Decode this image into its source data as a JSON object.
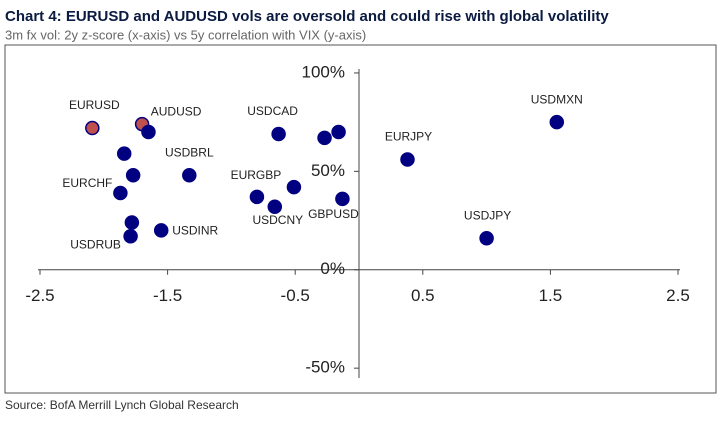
{
  "chart_data": {
    "type": "scatter",
    "title": "Chart 4: EURUSD and AUDUSD vols are oversold and could rise with global volatility",
    "subtitle": "3m fx vol: 2y z-score (x-axis) vs 5y correlation with VIX (y-axis)",
    "source": "Source: BofA Merrill Lynch Global Research",
    "labels": [
      "EURUSD",
      "AUDUSD",
      null,
      null,
      "USDBRL",
      null,
      "EURCHF",
      null,
      "USDRUB",
      "USDINR",
      "USDCAD",
      null,
      null,
      "EURGBP",
      null,
      "USDCNY",
      "GBPUSD",
      "EURJPY",
      "USDJPY",
      "USDMXN"
    ],
    "x": [
      -2.09,
      -1.7,
      -1.65,
      -1.84,
      -1.33,
      -1.77,
      -1.87,
      -1.78,
      -1.79,
      -1.55,
      -0.63,
      -0.27,
      -0.16,
      -0.8,
      -0.51,
      -0.66,
      -0.13,
      0.38,
      1.0,
      1.55
    ],
    "values": [
      72,
      74,
      70,
      59,
      48,
      48,
      39,
      24,
      17,
      20,
      69,
      67,
      70,
      37,
      42,
      32,
      36,
      56,
      16,
      75
    ],
    "point_colors": [
      "#c0504d",
      "#c0504d",
      "#000080",
      "#000080",
      "#000080",
      "#000080",
      "#000080",
      "#000080",
      "#000080",
      "#000080",
      "#000080",
      "#000080",
      "#000080",
      "#000080",
      "#000080",
      "#000080",
      "#000080",
      "#000080",
      "#000080",
      "#000080"
    ],
    "edge_color": "#000080",
    "xlim": [
      -2.5,
      2.5
    ],
    "xticks": [
      -2.5,
      -1.5,
      -0.5,
      0.5,
      1.5,
      2.5
    ],
    "ylim": [
      -55,
      102
    ],
    "yticks": [
      {
        "value": -50,
        "label": "-50%"
      },
      {
        "value": 0,
        "label": "0%"
      },
      {
        "value": 50,
        "label": "50%"
      },
      {
        "value": 100,
        "label": "100%"
      }
    ]
  }
}
